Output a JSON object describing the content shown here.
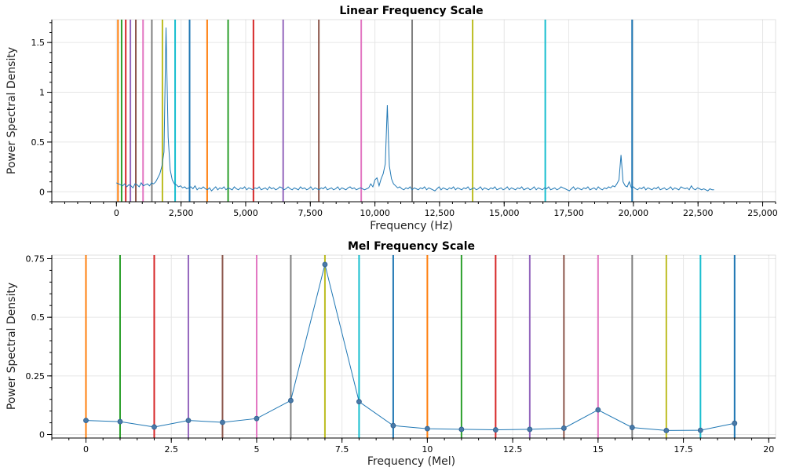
{
  "palette": [
    "#ff7f0e",
    "#2ca02c",
    "#d62728",
    "#9467bd",
    "#8c564b",
    "#e377c2",
    "#7f7f7f",
    "#bcbd22",
    "#17becf",
    "#1f77b4"
  ],
  "chart_data": [
    {
      "type": "line",
      "title": "Linear Frequency Scale",
      "xlabel": "Frequency (Hz)",
      "ylabel": "Power Spectral Density",
      "xlim": [
        -2500,
        25500
      ],
      "ylim": [
        -0.1,
        1.73
      ],
      "xticks": [
        0,
        2500,
        5000,
        7500,
        10000,
        12500,
        15000,
        17500,
        20000,
        22500,
        25000
      ],
      "xtick_labels": [
        "0",
        "2,500",
        "5,000",
        "7,500",
        "10,000",
        "12,500",
        "15,000",
        "17,500",
        "20,000",
        "22,500",
        "25,000"
      ],
      "xminor_step": 500,
      "yticks": [
        0,
        0.5,
        1,
        1.5
      ],
      "ytick_labels": [
        "0",
        "0.5",
        "1",
        "1.5"
      ],
      "yminor_step": 0.1,
      "series_color": "#1f77b4",
      "markers": false,
      "vlines": [
        {
          "x": 60,
          "color": "#ff7f0e"
        },
        {
          "x": 200,
          "color": "#2ca02c"
        },
        {
          "x": 360,
          "color": "#d62728"
        },
        {
          "x": 540,
          "color": "#9467bd"
        },
        {
          "x": 750,
          "color": "#8c564b"
        },
        {
          "x": 1030,
          "color": "#e377c2"
        },
        {
          "x": 1370,
          "color": "#7f7f7f"
        },
        {
          "x": 1780,
          "color": "#bcbd22"
        },
        {
          "x": 2270,
          "color": "#17becf"
        },
        {
          "x": 2830,
          "color": "#1f77b4"
        },
        {
          "x": 3510,
          "color": "#ff7f0e"
        },
        {
          "x": 4320,
          "color": "#2ca02c"
        },
        {
          "x": 5300,
          "color": "#d62728"
        },
        {
          "x": 6450,
          "color": "#9467bd"
        },
        {
          "x": 7830,
          "color": "#8c564b"
        },
        {
          "x": 9470,
          "color": "#e377c2"
        },
        {
          "x": 11440,
          "color": "#7f7f7f"
        },
        {
          "x": 13780,
          "color": "#bcbd22"
        },
        {
          "x": 16590,
          "color": "#17becf"
        },
        {
          "x": 19950,
          "color": "#1f77b4"
        }
      ],
      "x_start": 0,
      "x_step": 80,
      "y": [
        0.09,
        0.08,
        0.07,
        0.06,
        0.08,
        0.05,
        0.07,
        0.06,
        0.04,
        0.08,
        0.07,
        0.05,
        0.09,
        0.06,
        0.07,
        0.08,
        0.06,
        0.09,
        0.08,
        0.1,
        0.14,
        0.18,
        0.26,
        0.4,
        1.65,
        0.55,
        0.22,
        0.12,
        0.08,
        0.07,
        0.05,
        0.06,
        0.04,
        0.05,
        0.03,
        0.04,
        0.05,
        0.03,
        0.06,
        0.02,
        0.04,
        0.03,
        0.05,
        0.03,
        0.02,
        0.04,
        0.01,
        0.03,
        0.05,
        0.02,
        0.04,
        0.03,
        0.05,
        0.02,
        0.04,
        0.03,
        0.02,
        0.05,
        0.03,
        0.02,
        0.04,
        0.03,
        0.05,
        0.02,
        0.04,
        0.03,
        0.02,
        0.04,
        0.03,
        0.05,
        0.02,
        0.03,
        0.04,
        0.02,
        0.05,
        0.03,
        0.04,
        0.02,
        0.03,
        0.05,
        0.04,
        0.02,
        0.03,
        0.05,
        0.03,
        0.02,
        0.04,
        0.03,
        0.02,
        0.05,
        0.03,
        0.04,
        0.02,
        0.03,
        0.05,
        0.02,
        0.04,
        0.03,
        0.02,
        0.04,
        0.03,
        0.05,
        0.02,
        0.03,
        0.04,
        0.02,
        0.03,
        0.05,
        0.02,
        0.04,
        0.03,
        0.02,
        0.04,
        0.05,
        0.03,
        0.04,
        0.02,
        0.03,
        0.04,
        0.03,
        0.02,
        0.03,
        0.04,
        0.08,
        0.05,
        0.12,
        0.14,
        0.06,
        0.13,
        0.18,
        0.28,
        0.87,
        0.26,
        0.13,
        0.08,
        0.06,
        0.04,
        0.05,
        0.03,
        0.02,
        0.04,
        0.03,
        0.05,
        0.02,
        0.04,
        0.03,
        0.02,
        0.04,
        0.03,
        0.05,
        0.02,
        0.04,
        0.03,
        0.02,
        0.01,
        0.03,
        0.05,
        0.02,
        0.04,
        0.03,
        0.02,
        0.04,
        0.03,
        0.05,
        0.02,
        0.04,
        0.03,
        0.02,
        0.04,
        0.03,
        0.05,
        0.02,
        0.03,
        0.04,
        0.02,
        0.03,
        0.05,
        0.02,
        0.04,
        0.03,
        0.02,
        0.04,
        0.03,
        0.05,
        0.02,
        0.03,
        0.04,
        0.02,
        0.03,
        0.05,
        0.02,
        0.04,
        0.03,
        0.02,
        0.04,
        0.03,
        0.05,
        0.02,
        0.03,
        0.04,
        0.02,
        0.03,
        0.05,
        0.02,
        0.04,
        0.03,
        0.02,
        0.04,
        0.03,
        0.05,
        0.02,
        0.03,
        0.04,
        0.02,
        0.03,
        0.05,
        0.04,
        0.03,
        0.02,
        0.01,
        0.03,
        0.05,
        0.02,
        0.04,
        0.03,
        0.02,
        0.04,
        0.03,
        0.05,
        0.02,
        0.03,
        0.04,
        0.02,
        0.05,
        0.03,
        0.02,
        0.04,
        0.03,
        0.05,
        0.04,
        0.06,
        0.05,
        0.08,
        0.12,
        0.37,
        0.1,
        0.06,
        0.05,
        0.1,
        0.04,
        0.05,
        0.03,
        0.02,
        0.04,
        0.03,
        0.05,
        0.02,
        0.04,
        0.03,
        0.02,
        0.04,
        0.03,
        0.05,
        0.02,
        0.03,
        0.04,
        0.02,
        0.03,
        0.05,
        0.02,
        0.04,
        0.03,
        0.02,
        0.05,
        0.04,
        0.03,
        0.04,
        0.02,
        0.06,
        0.03,
        0.02,
        0.04,
        0.03,
        0.02,
        0.03,
        0.02,
        0.01,
        0.03,
        0.02,
        0.02
      ]
    },
    {
      "type": "line",
      "title": "Mel Frequency Scale",
      "xlabel": "Frequency (Mel)",
      "ylabel": "Power Spectral Density",
      "xlim": [
        -1,
        20.2
      ],
      "ylim": [
        -0.015,
        0.765
      ],
      "xticks": [
        0,
        2.5,
        5,
        7.5,
        10,
        12.5,
        15,
        17.5,
        20
      ],
      "xtick_labels": [
        "0",
        "2.5",
        "5",
        "7.5",
        "10",
        "12.5",
        "15",
        "17.5",
        "20"
      ],
      "xminor_step": 0.5,
      "yticks": [
        0,
        0.25,
        0.5,
        0.75
      ],
      "ytick_labels": [
        "0",
        "0.25",
        "0.5",
        "0.75"
      ],
      "yminor_step": 0.05,
      "series_color": "#1f77b4",
      "markers": true,
      "vlines": [
        {
          "x": 0,
          "color": "#ff7f0e"
        },
        {
          "x": 1,
          "color": "#2ca02c"
        },
        {
          "x": 2,
          "color": "#d62728"
        },
        {
          "x": 3,
          "color": "#9467bd"
        },
        {
          "x": 4,
          "color": "#8c564b"
        },
        {
          "x": 5,
          "color": "#e377c2"
        },
        {
          "x": 6,
          "color": "#7f7f7f"
        },
        {
          "x": 7,
          "color": "#bcbd22"
        },
        {
          "x": 8,
          "color": "#17becf"
        },
        {
          "x": 9,
          "color": "#1f77b4"
        },
        {
          "x": 10,
          "color": "#ff7f0e"
        },
        {
          "x": 11,
          "color": "#2ca02c"
        },
        {
          "x": 12,
          "color": "#d62728"
        },
        {
          "x": 13,
          "color": "#9467bd"
        },
        {
          "x": 14,
          "color": "#8c564b"
        },
        {
          "x": 15,
          "color": "#e377c2"
        },
        {
          "x": 16,
          "color": "#7f7f7f"
        },
        {
          "x": 17,
          "color": "#bcbd22"
        },
        {
          "x": 18,
          "color": "#17becf"
        },
        {
          "x": 19,
          "color": "#1f77b4"
        }
      ],
      "x_start": 0,
      "x_step": 1,
      "y": [
        0.06,
        0.055,
        0.032,
        0.06,
        0.052,
        0.068,
        0.145,
        0.725,
        0.14,
        0.038,
        0.025,
        0.022,
        0.02,
        0.022,
        0.027,
        0.105,
        0.03,
        0.017,
        0.018,
        0.048
      ]
    }
  ]
}
